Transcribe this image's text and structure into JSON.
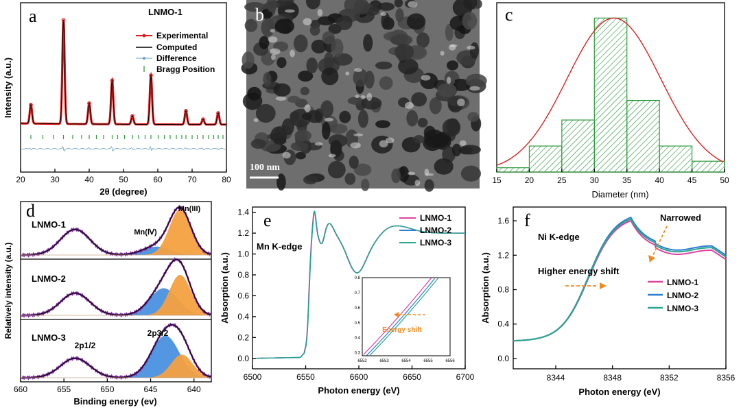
{
  "panels": {
    "a": {
      "letter": "a",
      "title": "LNMO-1",
      "xlabel": "2θ (degree)",
      "ylabel": "Intensity (a.u.)",
      "legend": [
        "Experimental",
        "Computed",
        "Difference",
        "Bragg Position"
      ]
    },
    "b": {
      "letter": "b",
      "scalebar": "100 nm"
    },
    "c": {
      "letter": "c",
      "xlabel": "Diameter (nm)"
    },
    "d": {
      "letter": "d",
      "xlabel": "Binding energy (ev)",
      "ylabel": "Relatively intensity (a.u.)",
      "samples": [
        "LNMO-1",
        "LNMO-2",
        "LNMO-3"
      ],
      "mn3": "Mn(III)",
      "mn4": "Mn(Ⅳ)",
      "p12": "2p1/2",
      "p32": "2p3/2"
    },
    "e": {
      "letter": "e",
      "xlabel": "Photon energy (eV)",
      "ylabel": "Absorption (a.u.)",
      "edge": "Mn K-edge",
      "legend": [
        "LNMO-1",
        "LNMO-2",
        "LNMO-3"
      ],
      "inset_label": "Energy shift"
    },
    "f": {
      "letter": "f",
      "xlabel": "Photon energy (eV)",
      "ylabel": "Absorption (a.u.)",
      "edge": "Ni K-edge",
      "legend": [
        "LNMO-1",
        "LNMO-2",
        "LNMO-3"
      ],
      "narrowed": "Narrowed",
      "shift": "Higher energy shift"
    }
  },
  "colors": {
    "lnmo1": "#e040a0",
    "lnmo2": "#2a7fd0",
    "lnmo3": "#2aa590",
    "red": "#d82020",
    "green": "#2e9a3e",
    "orange": "#f4a040",
    "blue": "#4a90e0",
    "purple": "#7a2a9a",
    "arrow": "#f08a20"
  },
  "chart_data": [
    {
      "panel": "a",
      "type": "line",
      "title": "LNMO-1",
      "xlabel": "2θ (degree)",
      "ylabel": "Intensity (a.u.)",
      "xlim": [
        20,
        80
      ],
      "xticks": [
        20,
        30,
        40,
        50,
        60,
        70,
        80
      ],
      "peaks": [
        {
          "x": 23.0,
          "h": 0.18
        },
        {
          "x": 32.5,
          "h": 1.0
        },
        {
          "x": 40.0,
          "h": 0.2
        },
        {
          "x": 46.7,
          "h": 0.42
        },
        {
          "x": 52.6,
          "h": 0.08
        },
        {
          "x": 58.0,
          "h": 0.47
        },
        {
          "x": 68.2,
          "h": 0.13
        },
        {
          "x": 73.2,
          "h": 0.05
        },
        {
          "x": 77.6,
          "h": 0.11
        }
      ],
      "bragg": [
        23.0,
        26.5,
        29.6,
        32.5,
        35.2,
        37.8,
        40.0,
        42.1,
        44.2,
        46.7,
        48.3,
        50.3,
        52.6,
        54.4,
        56.3,
        58.0,
        60.1,
        61.9,
        63.6,
        65.4,
        67.0,
        68.2,
        70.0,
        71.5,
        73.2,
        74.8,
        76.3,
        77.6,
        79.0
      ],
      "series": [
        "Experimental",
        "Computed",
        "Difference",
        "Bragg Position"
      ]
    },
    {
      "panel": "c",
      "type": "bar",
      "xlabel": "Diameter (nm)",
      "xlim": [
        15,
        50
      ],
      "xticks": [
        15,
        20,
        25,
        30,
        35,
        40,
        45,
        50
      ],
      "bins": [
        [
          15,
          20
        ],
        [
          20,
          25
        ],
        [
          25,
          30
        ],
        [
          30,
          35
        ],
        [
          35,
          40
        ],
        [
          40,
          45
        ],
        [
          45,
          50
        ]
      ],
      "values": [
        2,
        12,
        24,
        71,
        33,
        12,
        5
      ],
      "ymax": 73,
      "fit": {
        "mean": 33,
        "sigma": 7.2,
        "peak": 71
      }
    },
    {
      "panel": "d",
      "type": "line",
      "xlabel": "Binding energy (ev)",
      "ylabel": "Relatively intensity (a.u.)",
      "xlim": [
        660,
        638
      ],
      "xticks": [
        660,
        655,
        650,
        645,
        640
      ],
      "samples": [
        {
          "name": "LNMO-1",
          "p12": [
            653.7,
            0.55
          ],
          "mn4": [
            644.3,
            0.18
          ],
          "mn3": [
            641.6,
            0.98
          ]
        },
        {
          "name": "LNMO-2",
          "p12": [
            653.7,
            0.45
          ],
          "mn4": [
            643.5,
            0.55
          ],
          "mn3": [
            641.6,
            0.82
          ]
        },
        {
          "name": "LNMO-3",
          "p12": [
            653.7,
            0.38
          ],
          "mn4": [
            643.3,
            0.82
          ],
          "mn3": [
            641.4,
            0.45
          ]
        }
      ]
    },
    {
      "panel": "e",
      "type": "line",
      "xlabel": "Photon energy (eV)",
      "ylabel": "Absorption (a.u.)",
      "xlim": [
        6500,
        6700
      ],
      "ylim": [
        -0.1,
        1.45
      ],
      "xticks": [
        6500,
        6550,
        6600,
        6650,
        6700
      ],
      "yticks": [
        0.0,
        0.2,
        0.4,
        0.6,
        0.8,
        1.0,
        1.2,
        1.4
      ],
      "series": [
        {
          "name": "LNMO-1",
          "shift": 0
        },
        {
          "name": "LNMO-2",
          "shift": 0.2
        },
        {
          "name": "LNMO-3",
          "shift": 0.35
        }
      ],
      "inset": {
        "xlim": [
          6552,
          6556
        ],
        "ylim": [
          0.28,
          0.8
        ],
        "xticks": [
          6552,
          6553,
          6554,
          6555,
          6556
        ],
        "yticks": [
          0.3,
          0.4,
          0.5,
          0.6,
          0.7,
          0.8
        ]
      }
    },
    {
      "panel": "f",
      "type": "line",
      "xlabel": "Photon energy (eV)",
      "ylabel": "Absorption (a.u.)",
      "xlim": [
        8341,
        8356
      ],
      "ylim": [
        -0.12,
        1.76
      ],
      "xticks": [
        8344,
        8348,
        8352,
        8356
      ],
      "yticks": [
        0.0,
        0.4,
        0.8,
        1.2,
        1.6
      ],
      "series": [
        {
          "name": "LNMO-1",
          "peak": 1.66,
          "tail": 1.24
        },
        {
          "name": "LNMO-2",
          "peak": 1.7,
          "tail": 1.29
        },
        {
          "name": "LNMO-3",
          "peak": 1.68,
          "tail": 1.27
        }
      ]
    }
  ]
}
